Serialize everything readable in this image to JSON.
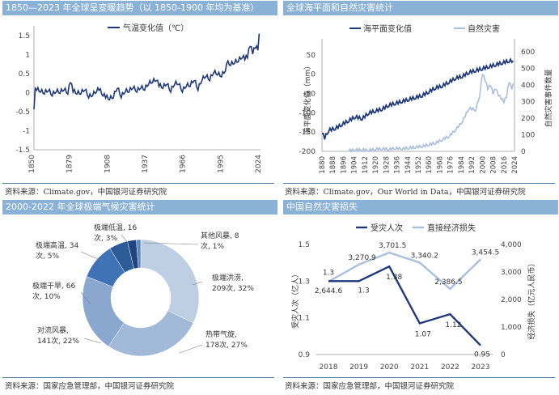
{
  "panels": {
    "tl": {
      "title": "1850—2023 年全球呈变暖趋势（以 1850-1900 年均为基准）",
      "source": "资料来源：Climate.gov，中国银河证券研究院"
    },
    "tr": {
      "title": "全球海平面和自然灾害统计",
      "source": "资料来源：Climate.gov，Our World in Data，中国银河证券研究院"
    },
    "bl": {
      "title": "2000-2022 年全球极端气候灾害统计",
      "source": "资料来源：国家应急管理部，中国银河证券研究院"
    },
    "br": {
      "title": "中国自然灾害损失",
      "source": "资料来源：国家应急管理部，中国银河证券研究院"
    }
  },
  "colors": {
    "dark": "#1f3a7a",
    "light": "#a9bfdc",
    "title_bg": "#8ab1d6"
  },
  "chart_data": [
    {
      "id": "temp",
      "type": "line",
      "legend": "气温变化值（℃）",
      "x_ticks": [
        1850,
        1879,
        1908,
        1937,
        1966,
        1995,
        2024
      ],
      "y_ticks": [
        -1.5,
        -1,
        -0.5,
        0,
        0.5,
        1,
        1.5
      ],
      "ylim": [
        -1.5,
        1.75
      ],
      "xlim": [
        1850,
        2024
      ],
      "series_desc": "annual anomaly approx",
      "x": [
        1850,
        1851,
        1852,
        1855,
        1858,
        1861,
        1864,
        1867,
        1870,
        1873,
        1876,
        1878,
        1880,
        1883,
        1886,
        1889,
        1892,
        1895,
        1898,
        1900,
        1903,
        1905,
        1908,
        1911,
        1914,
        1917,
        1920,
        1923,
        1926,
        1929,
        1932,
        1935,
        1938,
        1941,
        1944,
        1946,
        1949,
        1952,
        1955,
        1958,
        1961,
        1964,
        1967,
        1970,
        1973,
        1976,
        1979,
        1982,
        1985,
        1988,
        1991,
        1994,
        1997,
        1998,
        2001,
        2004,
        2007,
        2010,
        2012,
        2014,
        2016,
        2018,
        2020,
        2022,
        2023
      ],
      "y": [
        -0.4,
        0.15,
        0.1,
        0.05,
        0.0,
        0.08,
        -0.05,
        0.05,
        0.02,
        0.1,
        0.0,
        0.3,
        0.05,
        0.0,
        0.0,
        0.1,
        -0.1,
        -0.05,
        0.05,
        0.1,
        -0.05,
        -0.1,
        -0.15,
        -0.1,
        0.15,
        -0.1,
        0.05,
        0.05,
        0.15,
        0.05,
        0.15,
        0.1,
        0.25,
        0.3,
        0.35,
        0.2,
        0.15,
        0.25,
        0.05,
        0.25,
        0.25,
        0.05,
        0.2,
        0.2,
        0.35,
        0.1,
        0.35,
        0.45,
        0.35,
        0.55,
        0.5,
        0.45,
        0.6,
        0.8,
        0.75,
        0.8,
        0.85,
        0.95,
        0.9,
        0.95,
        1.25,
        1.05,
        1.2,
        1.15,
        1.55
      ]
    },
    {
      "id": "sea",
      "type": "line",
      "legend": [
        "海平面变化值",
        "自然灾害"
      ],
      "ylabel_left": "海平面变化值（mm）",
      "ylabel_right": "自然灾害事件数量",
      "x_ticks": [
        1880,
        1888,
        1896,
        1904,
        1912,
        1920,
        1928,
        1936,
        1944,
        1952,
        1960,
        1968,
        1976,
        1984,
        1992,
        2000,
        2008,
        2016,
        2024
      ],
      "y_left_ticks": [
        -200,
        -150,
        -100,
        -50,
        0,
        50
      ],
      "y_right_ticks": [
        0,
        100,
        200,
        300,
        400,
        500,
        600
      ],
      "xlim": [
        1880,
        2024
      ],
      "ylim_left": [
        -200,
        75
      ],
      "ylim_right": [
        0,
        640
      ],
      "sea_level": {
        "x": [
          1880,
          1882,
          1885,
          1890,
          1895,
          1900,
          1905,
          1910,
          1915,
          1920,
          1925,
          1930,
          1935,
          1940,
          1945,
          1950,
          1955,
          1960,
          1965,
          1970,
          1975,
          1980,
          1985,
          1990,
          1995,
          2000,
          2005,
          2010,
          2015,
          2020,
          2023
        ],
        "y": [
          -150,
          -165,
          -145,
          -140,
          -130,
          -120,
          -110,
          -115,
          -100,
          -95,
          -90,
          -80,
          -75,
          -70,
          -65,
          -60,
          -55,
          -45,
          -35,
          -30,
          -20,
          -10,
          -5,
          5,
          10,
          15,
          20,
          25,
          30,
          35,
          35
        ]
      },
      "disasters": {
        "x": [
          1900,
          1905,
          1910,
          1915,
          1920,
          1925,
          1930,
          1935,
          1940,
          1945,
          1950,
          1955,
          1960,
          1965,
          1970,
          1975,
          1980,
          1985,
          1990,
          1995,
          1998,
          2000,
          2002,
          2004,
          2006,
          2008,
          2010,
          2012,
          2014,
          2016,
          2018,
          2020,
          2022,
          2023
        ],
        "y": [
          5,
          8,
          10,
          6,
          12,
          15,
          12,
          18,
          15,
          20,
          25,
          30,
          40,
          50,
          70,
          90,
          130,
          180,
          260,
          250,
          340,
          470,
          430,
          380,
          400,
          350,
          380,
          340,
          320,
          300,
          330,
          420,
          380,
          410
        ]
      }
    },
    {
      "id": "extreme",
      "type": "pie",
      "donut": true,
      "slices": [
        {
          "label": "极端洪涝",
          "count": "209次",
          "pct": "32%",
          "value": 209,
          "color": "#bfcfe3"
        },
        {
          "label": "热带气旋",
          "count": "178次",
          "pct": "27%",
          "value": 178,
          "color": "#a2b9d8"
        },
        {
          "label": "对流风暴",
          "count": "141次",
          "pct": "22%",
          "value": 141,
          "color": "#8aa8cf"
        },
        {
          "label": "极端干旱",
          "count": "66次",
          "pct": "10%",
          "value": 66,
          "color": "#3f73b5"
        },
        {
          "label": "极端高温",
          "count": "34次",
          "pct": "5%",
          "value": 34,
          "color": "#2c5b98"
        },
        {
          "label": "极端低温",
          "count": "16次",
          "pct": "3%",
          "value": 16,
          "color": "#1f4580"
        },
        {
          "label": "其他风暴",
          "count": "8次",
          "pct": "1%",
          "value": 8,
          "color": "#5f87c0"
        }
      ],
      "slice_labels": [
        {
          "name": "极端洪涝",
          "line1": "极端洪涝,",
          "line2": "209次, 32%"
        },
        {
          "name": "热带气旋",
          "line1": "热带气旋,",
          "line2": "178次, 27%"
        },
        {
          "name": "对流风暴",
          "line1": "对流风暴,",
          "line2": "141次, 22%"
        },
        {
          "name": "极端干旱",
          "line1": "极端干旱, 66",
          "line2": "次, 10%"
        },
        {
          "name": "极端高温",
          "line1": "极端高温, 34",
          "line2": "次, 5%"
        },
        {
          "name": "极端低温",
          "line1": "极端低温, 16",
          "line2": "次, 3%"
        },
        {
          "name": "其他风暴",
          "line1": "其他风暴, 8",
          "line2": "次, 1%"
        }
      ]
    },
    {
      "id": "loss",
      "type": "line",
      "legend": [
        "受灾人次",
        "直接经济损失"
      ],
      "ylabel_left": "受灾人次（亿人）",
      "ylabel_right": "经济损失（亿元人民币）",
      "categories": [
        "2018",
        "2019",
        "2020",
        "2021",
        "2022",
        "2023"
      ],
      "y_left_ticks": [
        "0.9",
        "1.1",
        "1.3",
        "1.5"
      ],
      "y_right_ticks": [
        "0",
        "1,000",
        "2,000",
        "3,000",
        "4,000"
      ],
      "ylim_left": [
        0.9,
        1.5
      ],
      "ylim_right": [
        0,
        4000
      ],
      "people": [
        1.3,
        1.3,
        1.38,
        1.07,
        1.12,
        0.95
      ],
      "people_labels": [
        "1.3",
        "1.3",
        "1.38",
        "1.07",
        "1.12",
        "0.95"
      ],
      "loss": [
        2644.6,
        3270.9,
        3701.5,
        3340.2,
        2386.5,
        3454.5
      ],
      "loss_labels": [
        "2,644.6",
        "3,270.9",
        "3,701.5",
        "3,340.2",
        "2,386.5",
        "3,454.5"
      ]
    }
  ]
}
